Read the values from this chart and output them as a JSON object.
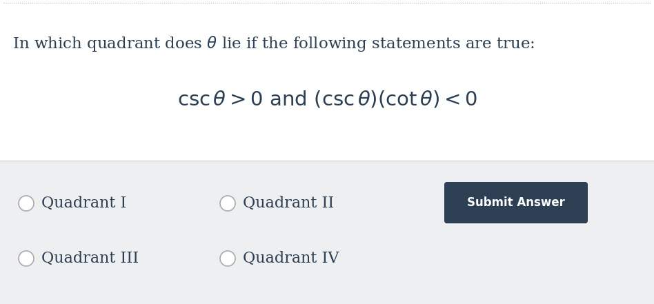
{
  "bg_color": "#ffffff",
  "answer_section_bg": "#eeeff1",
  "title_text": "In which quadrant does $\\theta$ lie if the following statements are true:",
  "title_color": "#2b3e52",
  "title_fontsize": 16.5,
  "math_expression": "$\\mathrm{csc}\\,\\theta > 0\\ \\mathrm{and}\\ (\\mathrm{csc}\\,\\theta)(\\mathrm{cot}\\,\\theta) < 0$",
  "math_fontsize": 21,
  "math_color": "#2b3e52",
  "options": [
    "Quadrant I",
    "Quadrant II",
    "Quadrant III",
    "Quadrant IV"
  ],
  "options_color": "#2b3e52",
  "options_fontsize": 16,
  "submit_text": "Submit Answer",
  "submit_bg": "#2d3f52",
  "submit_text_color": "#ffffff",
  "submit_fontsize": 12,
  "dashed_border_color": "#b0b0b0",
  "answer_border_color": "#cccccc",
  "circle_edgecolor": "#aaaaaa",
  "figsize": [
    9.48,
    4.41
  ],
  "dpi": 100
}
